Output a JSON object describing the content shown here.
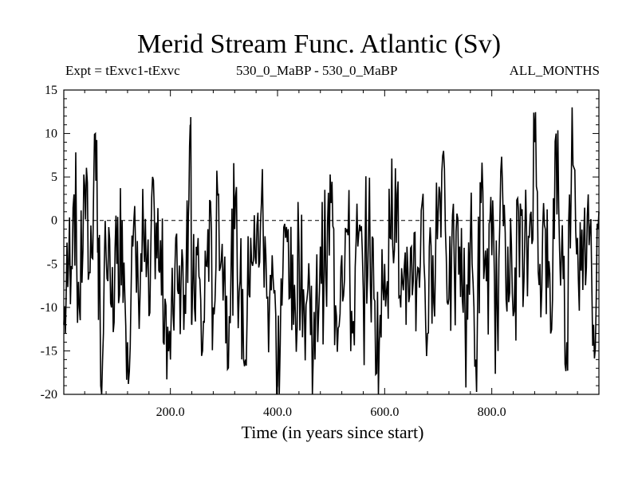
{
  "chart_data": {
    "type": "line",
    "title": "Merid Stream Func. Atlantic (Sv)",
    "subtitle_left": "Expt = tExvc1-tExvc",
    "subtitle_center": "530_0_MaBP - 530_0_MaBP",
    "subtitle_right": "ALL_MONTHS",
    "xlabel": "Time (in years since start)",
    "ylabel": "",
    "xlim": [
      1,
      1000
    ],
    "ylim": [
      -20,
      15
    ],
    "xticks": [
      200,
      400,
      600,
      800
    ],
    "xtick_labels": [
      "200.0",
      "400.0",
      "600.0",
      "800.0"
    ],
    "yticks": [
      15,
      10,
      5,
      0,
      -5,
      -10,
      -15,
      -20
    ],
    "ytick_labels": [
      "15",
      "10",
      "5",
      "0",
      "-5",
      "-10",
      "-15",
      "-20"
    ],
    "zero_line": {
      "value": 0,
      "style": "dashed"
    },
    "series": [
      {
        "name": "Merid Stream Func. Atlantic",
        "color": "#000000",
        "x": [
          1,
          10,
          20,
          30,
          40,
          50,
          60,
          65,
          70,
          80,
          90,
          100,
          110,
          120,
          130,
          140,
          150,
          160,
          170,
          180,
          190,
          200,
          210,
          220,
          230,
          237,
          240,
          250,
          260,
          270,
          280,
          290,
          300,
          310,
          320,
          330,
          340,
          350,
          360,
          370,
          380,
          390,
          400,
          410,
          420,
          430,
          440,
          450,
          460,
          470,
          480,
          490,
          500,
          510,
          520,
          530,
          540,
          550,
          560,
          570,
          580,
          590,
          600,
          610,
          620,
          630,
          640,
          650,
          660,
          670,
          680,
          690,
          700,
          710,
          720,
          730,
          740,
          750,
          760,
          770,
          780,
          790,
          800,
          810,
          820,
          830,
          840,
          850,
          860,
          870,
          880,
          890,
          900,
          910,
          920,
          930,
          940,
          950,
          960,
          970,
          980,
          990,
          1000
        ],
        "values": [
          -12,
          -5,
          3,
          -10,
          4,
          -6,
          10,
          -2,
          -19,
          -4,
          -10,
          -5,
          0,
          -14,
          -3,
          -8,
          -2,
          -11,
          1,
          -6,
          -9,
          -16,
          -2,
          -7,
          -3,
          11,
          -12,
          -4,
          -15,
          -1,
          -10,
          3,
          -6,
          -11,
          -1,
          -7,
          -16,
          -2,
          -5,
          2,
          -9,
          -4,
          -19,
          -6,
          -1,
          -12,
          -3,
          -10,
          -8,
          -16,
          -3,
          -6,
          2,
          -11,
          -4,
          -1,
          -13,
          -3,
          -8,
          -1,
          -9,
          -14,
          -5,
          -2,
          6,
          -10,
          -12,
          -3,
          -7,
          2,
          -13,
          -4,
          1,
          8,
          -9,
          -5,
          -3,
          -11,
          -2,
          -16,
          2,
          -7,
          -4,
          -10,
          4,
          -3,
          -11,
          1,
          -7,
          -2,
          9,
          -5,
          -1,
          -13,
          10,
          -4,
          -14,
          13,
          -2,
          -8,
          3,
          -12,
          1
        ]
      }
    ]
  }
}
